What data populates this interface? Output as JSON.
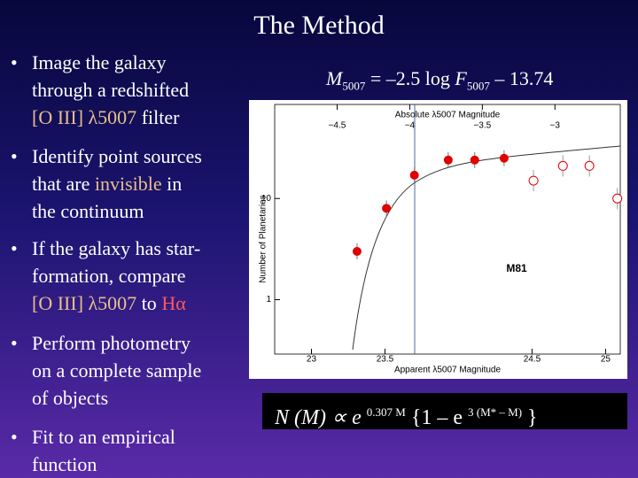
{
  "title": "The Method",
  "bullets": [
    [
      [
        {
          "text": "Image the galaxy"
        }
      ],
      [
        {
          "text": "through a redshifted"
        }
      ],
      [
        {
          "text": "[O III] λ5007",
          "color": "#e8bf8a"
        },
        {
          "text": " filter"
        }
      ]
    ],
    [
      [
        {
          "text": "Identify point sources"
        }
      ],
      [
        {
          "text": "that are "
        },
        {
          "text": "invisible",
          "color": "#e8bf8a"
        },
        {
          "text": " in"
        }
      ],
      [
        {
          "text": "the continuum"
        }
      ]
    ],
    [
      [
        {
          "text": "If the galaxy has star-"
        }
      ],
      [
        {
          "text": "formation, compare"
        }
      ],
      [
        {
          "text": "[O III] λ5007",
          "color": "#e8bf8a"
        },
        {
          "text": " to "
        },
        {
          "text": "Hα",
          "color": "#ff5a5a"
        }
      ]
    ],
    [
      [
        {
          "text": "Perform photometry"
        }
      ],
      [
        {
          "text": "on a complete sample"
        }
      ],
      [
        {
          "text": "of objects"
        }
      ]
    ],
    [
      [
        {
          "text": "Fit to an empirical"
        }
      ],
      [
        {
          "text": "function"
        }
      ]
    ]
  ],
  "equation": [
    {
      "text": "M",
      "italic": true
    },
    {
      "text": "5007",
      "sub": true
    },
    {
      "text": " = –2.5 log "
    },
    {
      "text": "F",
      "italic": true
    },
    {
      "text": "5007",
      "sub": true
    },
    {
      "text": " – 13.74"
    }
  ],
  "function": [
    {
      "text": "N (M) ∝ e ",
      "italic": true
    },
    {
      "text": "0.307 M",
      "sup": true
    },
    {
      "text": " {1 – e "
    },
    {
      "text": "3 (M* – M)",
      "sup": true
    },
    {
      "text": " }"
    }
  ],
  "figure": {
    "top_axis_label": "Absolute λ5007 Magnitude",
    "bottom_axis_label": "Apparent λ5007 Magnitude",
    "y_axis_label": "Number of Planetaries",
    "label": "M81",
    "top_xlim": [
      -4.93,
      -2.55
    ],
    "top_xticks": [
      {
        "value": -4.5,
        "label": "−4.5"
      },
      {
        "value": -4,
        "label": "−4"
      },
      {
        "value": -3.5,
        "label": "−3.5"
      },
      {
        "value": -3,
        "label": "−3"
      }
    ],
    "xlim": [
      22.75,
      25.1
    ],
    "xticks": [
      23,
      23.5,
      24.5,
      25
    ],
    "ylim": [
      0.29,
      85
    ],
    "log_y": true,
    "yticks": [
      1,
      10
    ],
    "color": "#e00000",
    "points": {
      "x": [
        23.31,
        23.51,
        23.7,
        23.93,
        24.11,
        24.31
      ],
      "y": [
        3.0,
        8.0,
        17,
        24,
        24,
        25
      ]
    },
    "open_points": {
      "x": [
        24.51,
        24.71,
        24.89,
        25.08
      ],
      "y": [
        15,
        21,
        21,
        10
      ]
    }
  }
}
